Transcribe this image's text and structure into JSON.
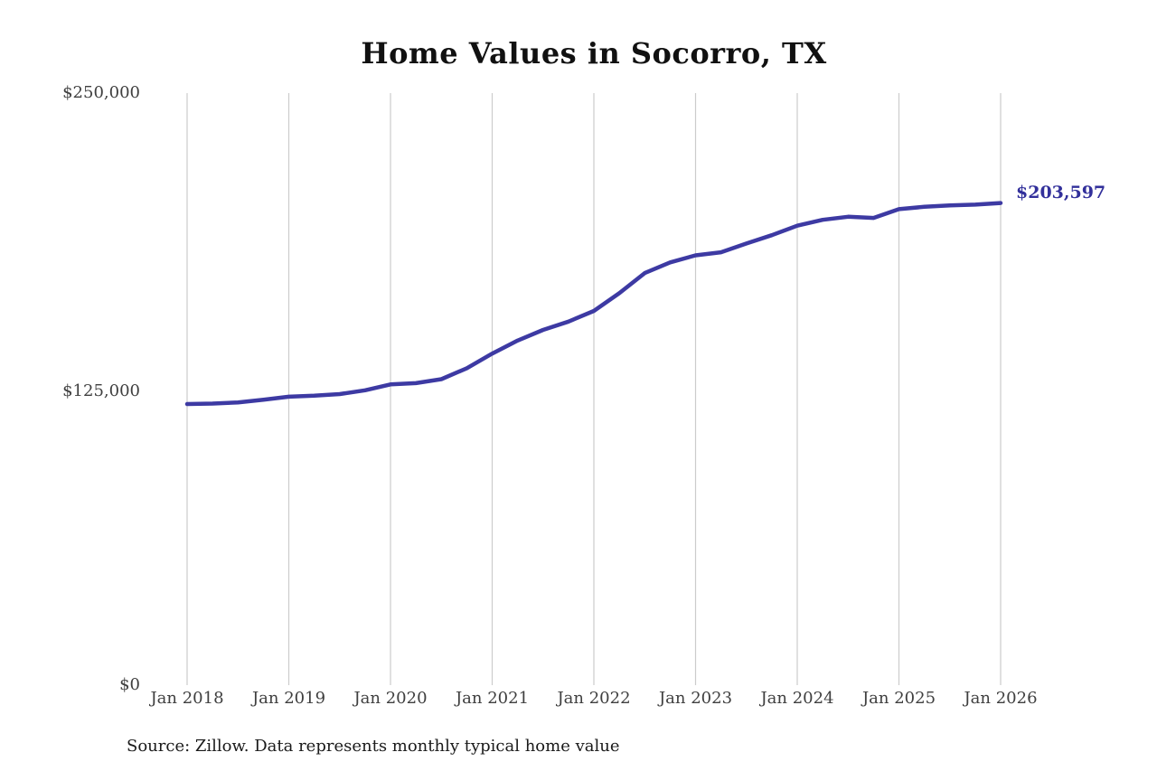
{
  "chart_data": {
    "type": "line",
    "title": "Home Values in Socorro, TX",
    "source_note": "Source: Zillow. Data represents monthly typical home value",
    "end_label": "$203,597",
    "line_color": "#3d3aa3",
    "grid_color": "#cccccc",
    "ylim": [
      0,
      250000
    ],
    "y_tick_values": [
      0,
      125000,
      250000
    ],
    "y_tick_labels": [
      "$0",
      "$125,000",
      "$250,000"
    ],
    "x_tick_years": [
      2018,
      2019,
      2020,
      2021,
      2022,
      2023,
      2024,
      2025,
      2026
    ],
    "x_tick_labels": [
      "Jan 2018",
      "Jan 2019",
      "Jan 2020",
      "Jan 2021",
      "Jan 2022",
      "Jan 2023",
      "Jan 2024",
      "Jan 2025",
      "Jan 2026"
    ],
    "series": [
      {
        "name": "Monthly typical home value",
        "points": [
          [
            "2018-01",
            118700
          ],
          [
            "2018-04",
            118900
          ],
          [
            "2018-07",
            119400
          ],
          [
            "2018-10",
            120500
          ],
          [
            "2019-01",
            121800
          ],
          [
            "2019-04",
            122200
          ],
          [
            "2019-07",
            122900
          ],
          [
            "2019-10",
            124500
          ],
          [
            "2020-01",
            127000
          ],
          [
            "2020-04",
            127500
          ],
          [
            "2020-07",
            129200
          ],
          [
            "2020-10",
            133800
          ],
          [
            "2021-01",
            140000
          ],
          [
            "2021-04",
            145500
          ],
          [
            "2021-07",
            150000
          ],
          [
            "2021-10",
            153500
          ],
          [
            "2022-01",
            158000
          ],
          [
            "2022-04",
            165500
          ],
          [
            "2022-07",
            174000
          ],
          [
            "2022-10",
            178500
          ],
          [
            "2023-01",
            181500
          ],
          [
            "2023-04",
            182800
          ],
          [
            "2023-07",
            186500
          ],
          [
            "2023-10",
            190000
          ],
          [
            "2024-01",
            194000
          ],
          [
            "2024-04",
            196500
          ],
          [
            "2024-07",
            197800
          ],
          [
            "2024-10",
            197300
          ],
          [
            "2025-01",
            201000
          ],
          [
            "2025-04",
            202000
          ],
          [
            "2025-07",
            202600
          ],
          [
            "2025-10",
            202900
          ],
          [
            "2026-01",
            203597
          ]
        ]
      }
    ]
  }
}
